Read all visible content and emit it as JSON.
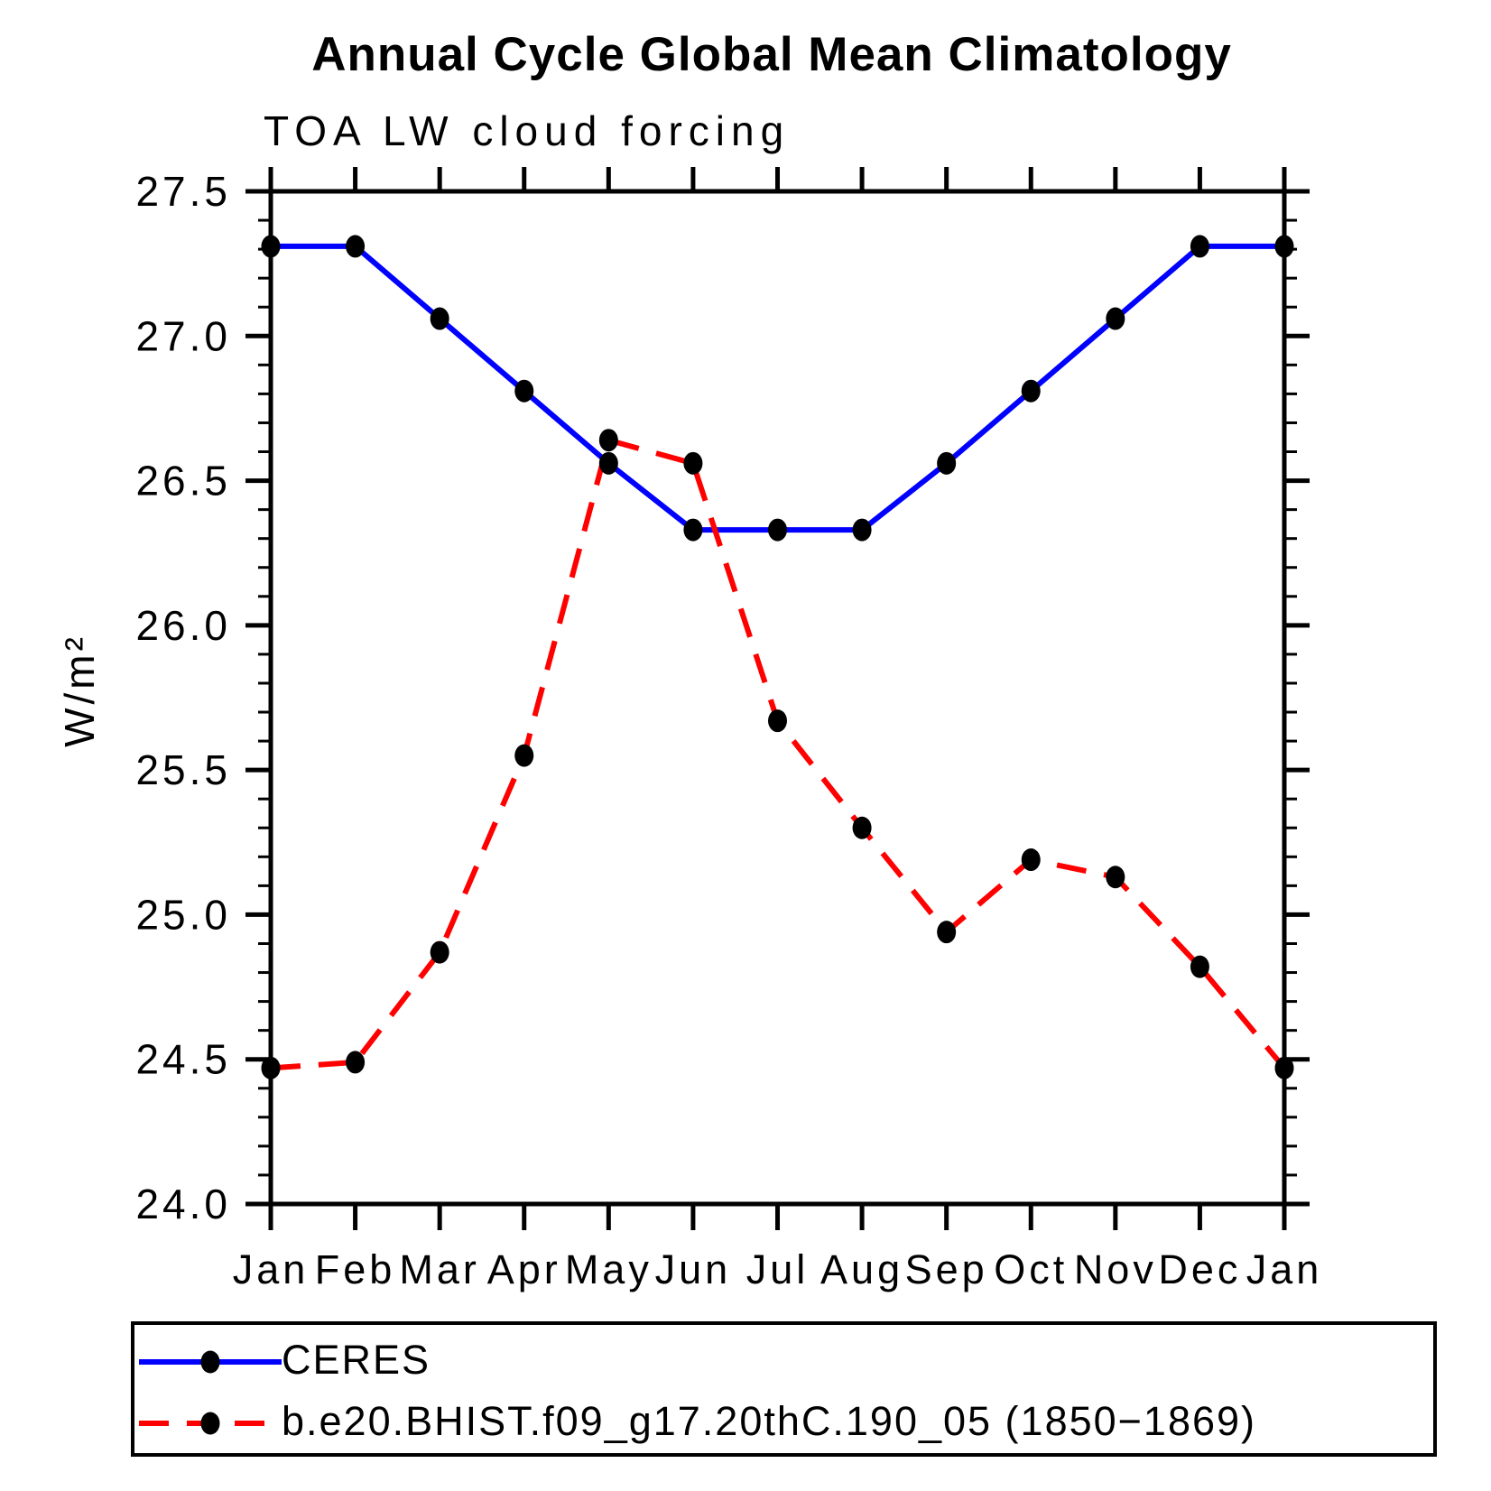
{
  "chart_data": {
    "type": "line",
    "title": "Annual Cycle Global Mean Climatology",
    "subtitle": "TOA LW cloud forcing",
    "xlabel": "",
    "ylabel": "W/m²",
    "categories": [
      "Jan",
      "Feb",
      "Mar",
      "Apr",
      "May",
      "Jun",
      "Jul",
      "Aug",
      "Sep",
      "Oct",
      "Nov",
      "Dec",
      "Jan"
    ],
    "series": [
      {
        "name": "CERES",
        "color": "#0000ff",
        "line_style": "solid",
        "marker": "filled-circle",
        "marker_color": "#000000",
        "values": [
          27.31,
          27.31,
          27.06,
          26.81,
          26.56,
          26.33,
          26.33,
          26.33,
          26.56,
          26.81,
          27.06,
          27.31,
          27.31
        ]
      },
      {
        "name": "b.e20.BHIST.f09_g17.20thC.190_05 (1850−1869)",
        "color": "#ff0000",
        "line_style": "dashed",
        "marker": "filled-circle",
        "marker_color": "#000000",
        "values": [
          24.47,
          24.49,
          24.87,
          25.55,
          26.64,
          26.56,
          25.67,
          25.3,
          24.94,
          25.19,
          25.13,
          24.82,
          24.47
        ]
      }
    ],
    "ylim": [
      24.0,
      27.5
    ],
    "y_major_tick_step": 0.5,
    "y_minor_tick_step": 0.1,
    "y_tick_label_format": "one-decimal",
    "grid": false,
    "legend_position": "bottom",
    "axis_color": "#000000",
    "text_color": "#000000"
  }
}
